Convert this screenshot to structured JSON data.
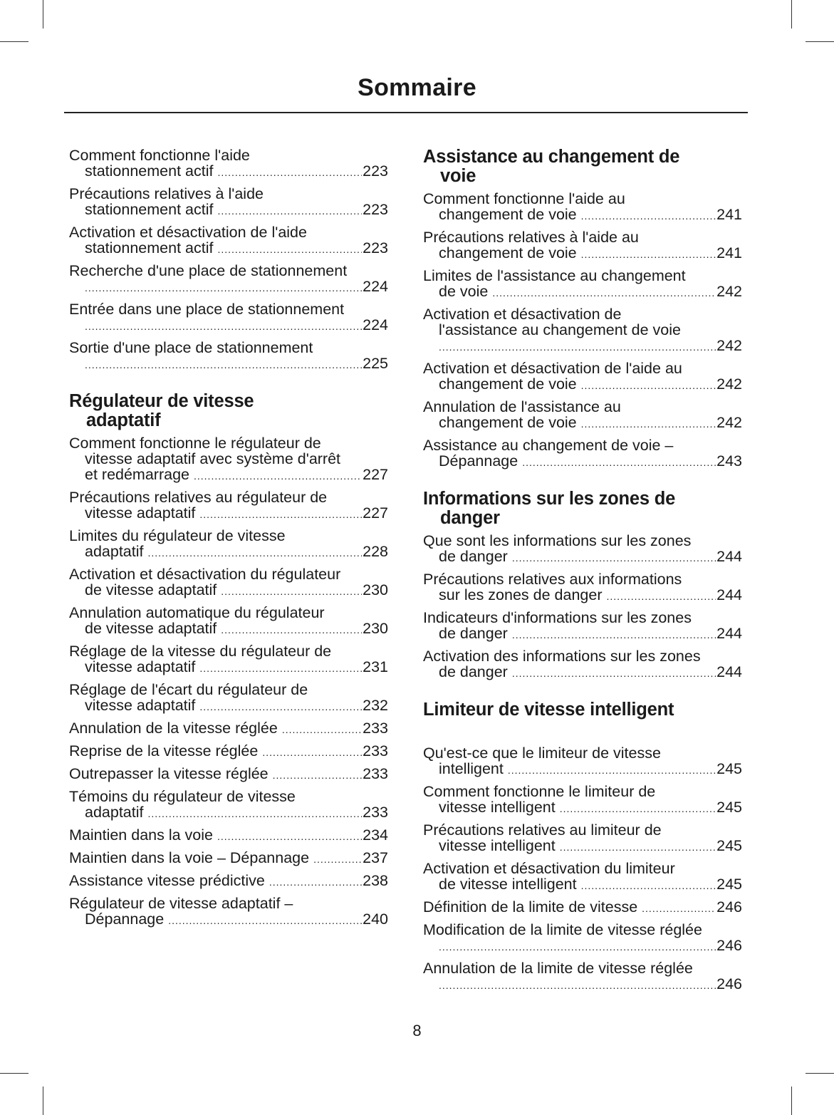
{
  "header": {
    "title": "Sommaire"
  },
  "footer": {
    "page_number": "8"
  },
  "columns": [
    {
      "sections": [
        {
          "heading": [],
          "entries": [
            {
              "lines": [
                "Comment fonctionne l'aide",
                "stationnement actif"
              ],
              "page": "223"
            },
            {
              "lines": [
                "Précautions relatives à l'aide",
                "stationnement actif"
              ],
              "page": "223"
            },
            {
              "lines": [
                "Activation et désactivation de l'aide",
                "stationnement actif"
              ],
              "page": "223"
            },
            {
              "lines": [
                "Recherche d'une place de stationnement",
                ""
              ],
              "page": "224"
            },
            {
              "lines": [
                "Entrée dans une place de stationnement",
                ""
              ],
              "page": "224"
            },
            {
              "lines": [
                "Sortie d'une place de stationnement",
                ""
              ],
              "page": "225"
            }
          ]
        },
        {
          "heading": [
            "Régulateur de vitesse",
            "adaptatif"
          ],
          "entries": [
            {
              "lines": [
                "Comment fonctionne le régulateur de",
                "vitesse adaptatif avec système d'arrêt",
                "et redémarrage"
              ],
              "page": "227"
            },
            {
              "lines": [
                "Précautions relatives au régulateur de",
                "vitesse adaptatif"
              ],
              "page": "227"
            },
            {
              "lines": [
                "Limites du régulateur de vitesse",
                "adaptatif"
              ],
              "page": "228"
            },
            {
              "lines": [
                "Activation et désactivation du régulateur",
                "de vitesse adaptatif"
              ],
              "page": "230"
            },
            {
              "lines": [
                "Annulation automatique du régulateur",
                "de vitesse adaptatif"
              ],
              "page": "230"
            },
            {
              "lines": [
                "Réglage de la vitesse du régulateur de",
                "vitesse adaptatif"
              ],
              "page": "231"
            },
            {
              "lines": [
                "Réglage de l'écart du régulateur de",
                "vitesse adaptatif"
              ],
              "page": "232"
            },
            {
              "lines": [
                "Annulation de la vitesse réglée"
              ],
              "page": "233"
            },
            {
              "lines": [
                "Reprise de la vitesse réglée"
              ],
              "page": "233"
            },
            {
              "lines": [
                "Outrepasser la vitesse réglée"
              ],
              "page": "233"
            },
            {
              "lines": [
                "Témoins du régulateur de vitesse",
                "adaptatif"
              ],
              "page": "233"
            },
            {
              "lines": [
                "Maintien dans la voie"
              ],
              "page": "234"
            },
            {
              "lines": [
                "Maintien dans la voie – Dépannage"
              ],
              "page": "237"
            },
            {
              "lines": [
                "Assistance vitesse prédictive"
              ],
              "page": "238"
            },
            {
              "lines": [
                "Régulateur de vitesse adaptatif –",
                "Dépannage"
              ],
              "page": "240"
            }
          ]
        }
      ]
    },
    {
      "sections": [
        {
          "heading": [
            "Assistance au changement de",
            "voie"
          ],
          "entries": [
            {
              "lines": [
                "Comment fonctionne l'aide au",
                "changement de voie"
              ],
              "page": "241"
            },
            {
              "lines": [
                "Précautions relatives à l'aide au",
                "changement de voie"
              ],
              "page": "241"
            },
            {
              "lines": [
                "Limites de l'assistance au changement",
                "de voie"
              ],
              "page": "242"
            },
            {
              "lines": [
                "Activation et désactivation de",
                "l'assistance au changement de voie",
                ""
              ],
              "page": "242"
            },
            {
              "lines": [
                "Activation et désactivation de l'aide au",
                "changement de voie"
              ],
              "page": "242"
            },
            {
              "lines": [
                "Annulation de l'assistance au",
                "changement de voie"
              ],
              "page": "242"
            },
            {
              "lines": [
                "Assistance au changement de voie –",
                "Dépannage"
              ],
              "page": "243"
            }
          ]
        },
        {
          "heading": [
            "Informations sur les zones de",
            "danger"
          ],
          "entries": [
            {
              "lines": [
                "Que sont les informations sur les zones",
                "de danger"
              ],
              "page": "244"
            },
            {
              "lines": [
                "Précautions relatives aux informations",
                "sur les zones de danger"
              ],
              "page": "244"
            },
            {
              "lines": [
                "Indicateurs d'informations sur les zones",
                "de danger"
              ],
              "page": "244"
            },
            {
              "lines": [
                "Activation des informations sur les zones",
                "de danger"
              ],
              "page": "244"
            }
          ]
        },
        {
          "heading": [
            "Limiteur de vitesse intelligent"
          ],
          "spaced": true,
          "entries": [
            {
              "lines": [
                "Qu'est-ce que le limiteur de vitesse",
                "intelligent"
              ],
              "page": "245"
            },
            {
              "lines": [
                "Comment fonctionne le limiteur de",
                "vitesse intelligent"
              ],
              "page": "245"
            },
            {
              "lines": [
                "Précautions relatives au limiteur de",
                "vitesse intelligent"
              ],
              "page": "245"
            },
            {
              "lines": [
                "Activation et désactivation du limiteur",
                "de vitesse intelligent"
              ],
              "page": "245"
            },
            {
              "lines": [
                "Définition de la limite de vitesse"
              ],
              "page": "246"
            },
            {
              "lines": [
                "Modification de la limite de vitesse réglée",
                ""
              ],
              "page": "246"
            },
            {
              "lines": [
                "Annulation de la limite de vitesse réglée",
                ""
              ],
              "page": "246"
            }
          ]
        }
      ]
    }
  ]
}
